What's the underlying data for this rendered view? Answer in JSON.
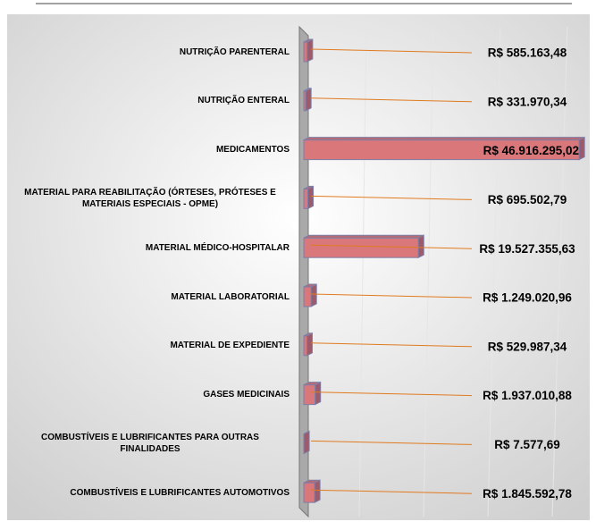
{
  "chart_data": {
    "type": "bar",
    "orientation": "horizontal",
    "categories": [
      "NUTRIÇÃO PARENTERAL",
      "NUTRIÇÃO ENTERAL",
      "MEDICAMENTOS",
      "MATERIAL PARA REABILITAÇÃO (ÓRTESES, PRÓTESES E MATERIAIS ESPECIAIS - OPME)",
      "MATERIAL MÉDICO-HOSPITALAR",
      "MATERIAL LABORATORIAL",
      "MATERIAL DE EXPEDIENTE",
      "GASES MEDICINAIS",
      "COMBUSTÍVEIS E LUBRIFICANTES PARA OUTRAS FINALIDADES",
      "COMBUSTÍVEIS E LUBRIFICANTES AUTOMOTIVOS"
    ],
    "values": [
      585163.48,
      331970.34,
      46916295.02,
      695502.79,
      19527355.63,
      1249020.96,
      529987.34,
      1937010.88,
      7577.69,
      1845592.78
    ],
    "value_labels": [
      "R$ 585.163,48",
      "R$ 331.970,34",
      "R$ 46.916.295,02",
      "R$ 695.502,79",
      "R$ 19.527.355,63",
      "R$ 1.249.020,96",
      "R$ 529.987,34",
      "R$ 1.937.010,88",
      "R$ 7.577,69",
      "R$ 1.845.592,78"
    ],
    "color": "#d9777a",
    "xlim": [
      0,
      47500000
    ]
  }
}
